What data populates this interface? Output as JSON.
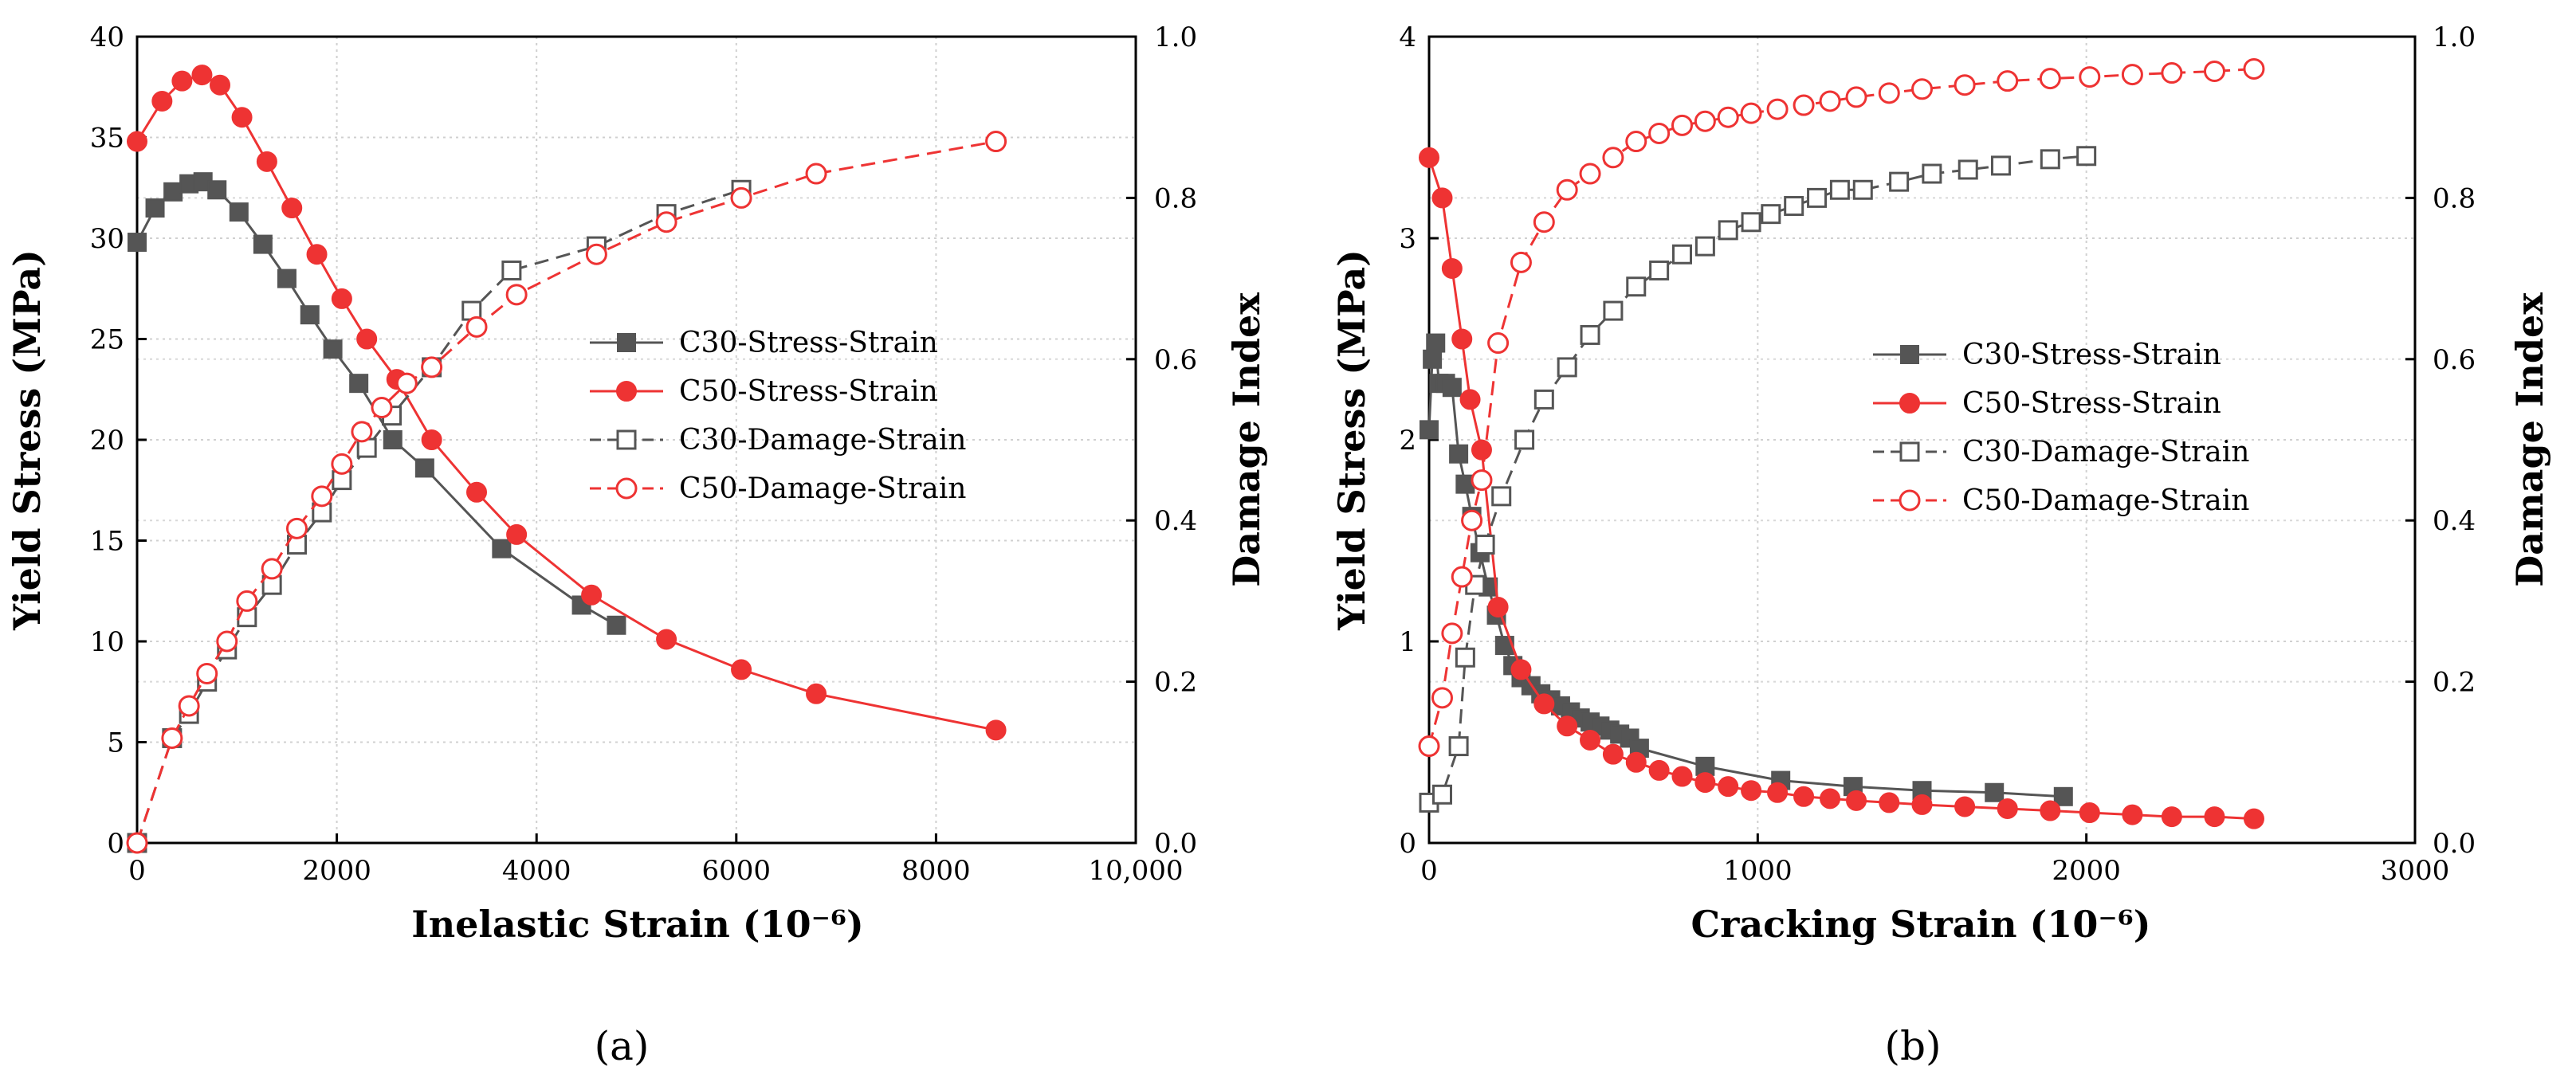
{
  "chart_data": [
    {
      "type": "line",
      "panel_label": "(a)",
      "xlabel": "Inelastic Strain (10⁻⁶)",
      "ylabel": "Yield Stress (MPa)",
      "y2label": "Damage Index",
      "xlim": [
        0,
        10000
      ],
      "ylim": [
        0,
        40
      ],
      "y2lim": [
        0.0,
        1.0
      ],
      "xticks": [
        "0",
        "2000",
        "4000",
        "6000",
        "8000",
        "10,000"
      ],
      "yticks": [
        "0",
        "5",
        "10",
        "15",
        "20",
        "25",
        "30",
        "35",
        "40"
      ],
      "y2ticks": [
        "0.0",
        "0.2",
        "0.4",
        "0.6",
        "0.8",
        "1.0"
      ],
      "grid": true,
      "legend_position": "center-right",
      "series": [
        {
          "name": "C30-Stress-Strain",
          "axis": "left",
          "color": "#555555",
          "line": "solid",
          "marker": "filled-square",
          "x": [
            0,
            180,
            360,
            520,
            660,
            800,
            1020,
            1260,
            1500,
            1730,
            1960,
            2220,
            2560,
            2880,
            3650,
            4450,
            4800
          ],
          "y": [
            29.8,
            31.5,
            32.3,
            32.7,
            32.8,
            32.4,
            31.3,
            29.7,
            28.0,
            26.2,
            24.5,
            22.8,
            20.0,
            18.6,
            14.6,
            11.8,
            10.8
          ]
        },
        {
          "name": "C50-Stress-Strain",
          "axis": "left",
          "color": "#ee3333",
          "line": "solid",
          "marker": "filled-circle",
          "x": [
            0,
            250,
            450,
            650,
            830,
            1050,
            1300,
            1550,
            1800,
            2050,
            2300,
            2600,
            2950,
            3400,
            3800,
            4550,
            5300,
            6050,
            6800,
            8600
          ],
          "y": [
            34.8,
            36.8,
            37.8,
            38.1,
            37.6,
            36.0,
            33.8,
            31.5,
            29.2,
            27.0,
            25.0,
            23.0,
            20.0,
            17.4,
            15.3,
            12.3,
            10.1,
            8.6,
            7.4,
            5.6
          ]
        },
        {
          "name": "C30-Damage-Strain",
          "axis": "right",
          "color": "#555555",
          "line": "dashed",
          "marker": "open-square",
          "x": [
            0,
            350,
            520,
            700,
            900,
            1100,
            1350,
            1600,
            1850,
            2050,
            2300,
            2550,
            2950,
            3350,
            3750,
            4600,
            5300,
            6050
          ],
          "y": [
            0.0,
            0.13,
            0.16,
            0.2,
            0.24,
            0.28,
            0.32,
            0.37,
            0.41,
            0.45,
            0.49,
            0.53,
            0.59,
            0.66,
            0.71,
            0.74,
            0.78,
            0.81
          ]
        },
        {
          "name": "C50-Damage-Strain",
          "axis": "right",
          "color": "#ee3333",
          "line": "dashed",
          "marker": "open-circle",
          "x": [
            0,
            350,
            520,
            700,
            900,
            1100,
            1350,
            1600,
            1850,
            2050,
            2250,
            2450,
            2700,
            2950,
            3400,
            3800,
            4600,
            5300,
            6050,
            6800,
            8600
          ],
          "y": [
            0.0,
            0.13,
            0.17,
            0.21,
            0.25,
            0.3,
            0.34,
            0.39,
            0.43,
            0.47,
            0.51,
            0.54,
            0.57,
            0.59,
            0.64,
            0.68,
            0.73,
            0.77,
            0.8,
            0.83,
            0.87
          ]
        }
      ]
    },
    {
      "type": "line",
      "panel_label": "(b)",
      "xlabel": "Cracking Strain (10⁻⁶)",
      "ylabel": "Yield Stress (MPa)",
      "y2label": "Damage Index",
      "xlim": [
        0,
        3000
      ],
      "ylim": [
        0,
        4
      ],
      "y2lim": [
        0.0,
        1.0
      ],
      "xticks": [
        "0",
        "1000",
        "2000",
        "3000"
      ],
      "yticks": [
        "0",
        "1",
        "2",
        "3",
        "4"
      ],
      "y2ticks": [
        "0.0",
        "0.2",
        "0.4",
        "0.6",
        "0.8",
        "1.0"
      ],
      "grid": true,
      "legend_position": "center-right",
      "series": [
        {
          "name": "C30-Stress-Strain",
          "axis": "left",
          "color": "#555555",
          "line": "solid",
          "marker": "filled-square",
          "x": [
            0,
            10,
            20,
            30,
            50,
            70,
            90,
            110,
            130,
            155,
            180,
            205,
            230,
            255,
            280,
            310,
            340,
            370,
            400,
            430,
            460,
            490,
            520,
            550,
            580,
            610,
            640,
            840,
            1070,
            1290,
            1500,
            1720,
            1930
          ],
          "y": [
            2.05,
            2.4,
            2.48,
            2.28,
            2.28,
            2.26,
            1.93,
            1.78,
            1.62,
            1.44,
            1.27,
            1.13,
            0.98,
            0.88,
            0.82,
            0.78,
            0.74,
            0.71,
            0.68,
            0.65,
            0.62,
            0.6,
            0.58,
            0.56,
            0.54,
            0.52,
            0.47,
            0.38,
            0.31,
            0.28,
            0.26,
            0.25,
            0.23
          ]
        },
        {
          "name": "C50-Stress-Strain",
          "axis": "left",
          "color": "#ee3333",
          "line": "solid",
          "marker": "filled-circle",
          "x": [
            0,
            40,
            70,
            100,
            125,
            160,
            210,
            280,
            350,
            420,
            490,
            560,
            630,
            700,
            770,
            840,
            910,
            980,
            1060,
            1140,
            1220,
            1300,
            1400,
            1500,
            1630,
            1760,
            1890,
            2010,
            2140,
            2260,
            2390,
            2510
          ],
          "y": [
            3.4,
            3.2,
            2.85,
            2.5,
            2.2,
            1.95,
            1.17,
            0.86,
            0.69,
            0.58,
            0.51,
            0.44,
            0.4,
            0.36,
            0.33,
            0.3,
            0.28,
            0.26,
            0.25,
            0.23,
            0.22,
            0.21,
            0.2,
            0.19,
            0.18,
            0.17,
            0.16,
            0.15,
            0.14,
            0.13,
            0.13,
            0.12
          ]
        },
        {
          "name": "C30-Damage-Strain",
          "axis": "right",
          "color": "#555555",
          "line": "dashed",
          "marker": "open-square",
          "x": [
            0,
            40,
            90,
            110,
            140,
            170,
            220,
            290,
            350,
            420,
            490,
            560,
            630,
            700,
            770,
            840,
            910,
            980,
            1040,
            1110,
            1180,
            1250,
            1320,
            1430,
            1530,
            1640,
            1740,
            1890,
            2000
          ],
          "y": [
            0.05,
            0.06,
            0.12,
            0.23,
            0.32,
            0.37,
            0.43,
            0.5,
            0.55,
            0.59,
            0.63,
            0.66,
            0.69,
            0.71,
            0.73,
            0.74,
            0.76,
            0.77,
            0.78,
            0.79,
            0.8,
            0.81,
            0.81,
            0.82,
            0.83,
            0.835,
            0.84,
            0.848,
            0.852
          ]
        },
        {
          "name": "C50-Damage-Strain",
          "axis": "right",
          "color": "#ee3333",
          "line": "dashed",
          "marker": "open-circle",
          "x": [
            0,
            40,
            70,
            100,
            130,
            160,
            210,
            280,
            350,
            420,
            490,
            560,
            630,
            700,
            770,
            840,
            910,
            980,
            1060,
            1140,
            1220,
            1300,
            1400,
            1500,
            1630,
            1760,
            1890,
            2010,
            2140,
            2260,
            2390,
            2510
          ],
          "y": [
            0.12,
            0.18,
            0.26,
            0.33,
            0.4,
            0.45,
            0.62,
            0.72,
            0.77,
            0.81,
            0.83,
            0.85,
            0.87,
            0.88,
            0.89,
            0.895,
            0.9,
            0.905,
            0.91,
            0.915,
            0.92,
            0.925,
            0.93,
            0.935,
            0.94,
            0.945,
            0.948,
            0.95,
            0.953,
            0.955,
            0.957,
            0.96
          ]
        }
      ]
    }
  ]
}
